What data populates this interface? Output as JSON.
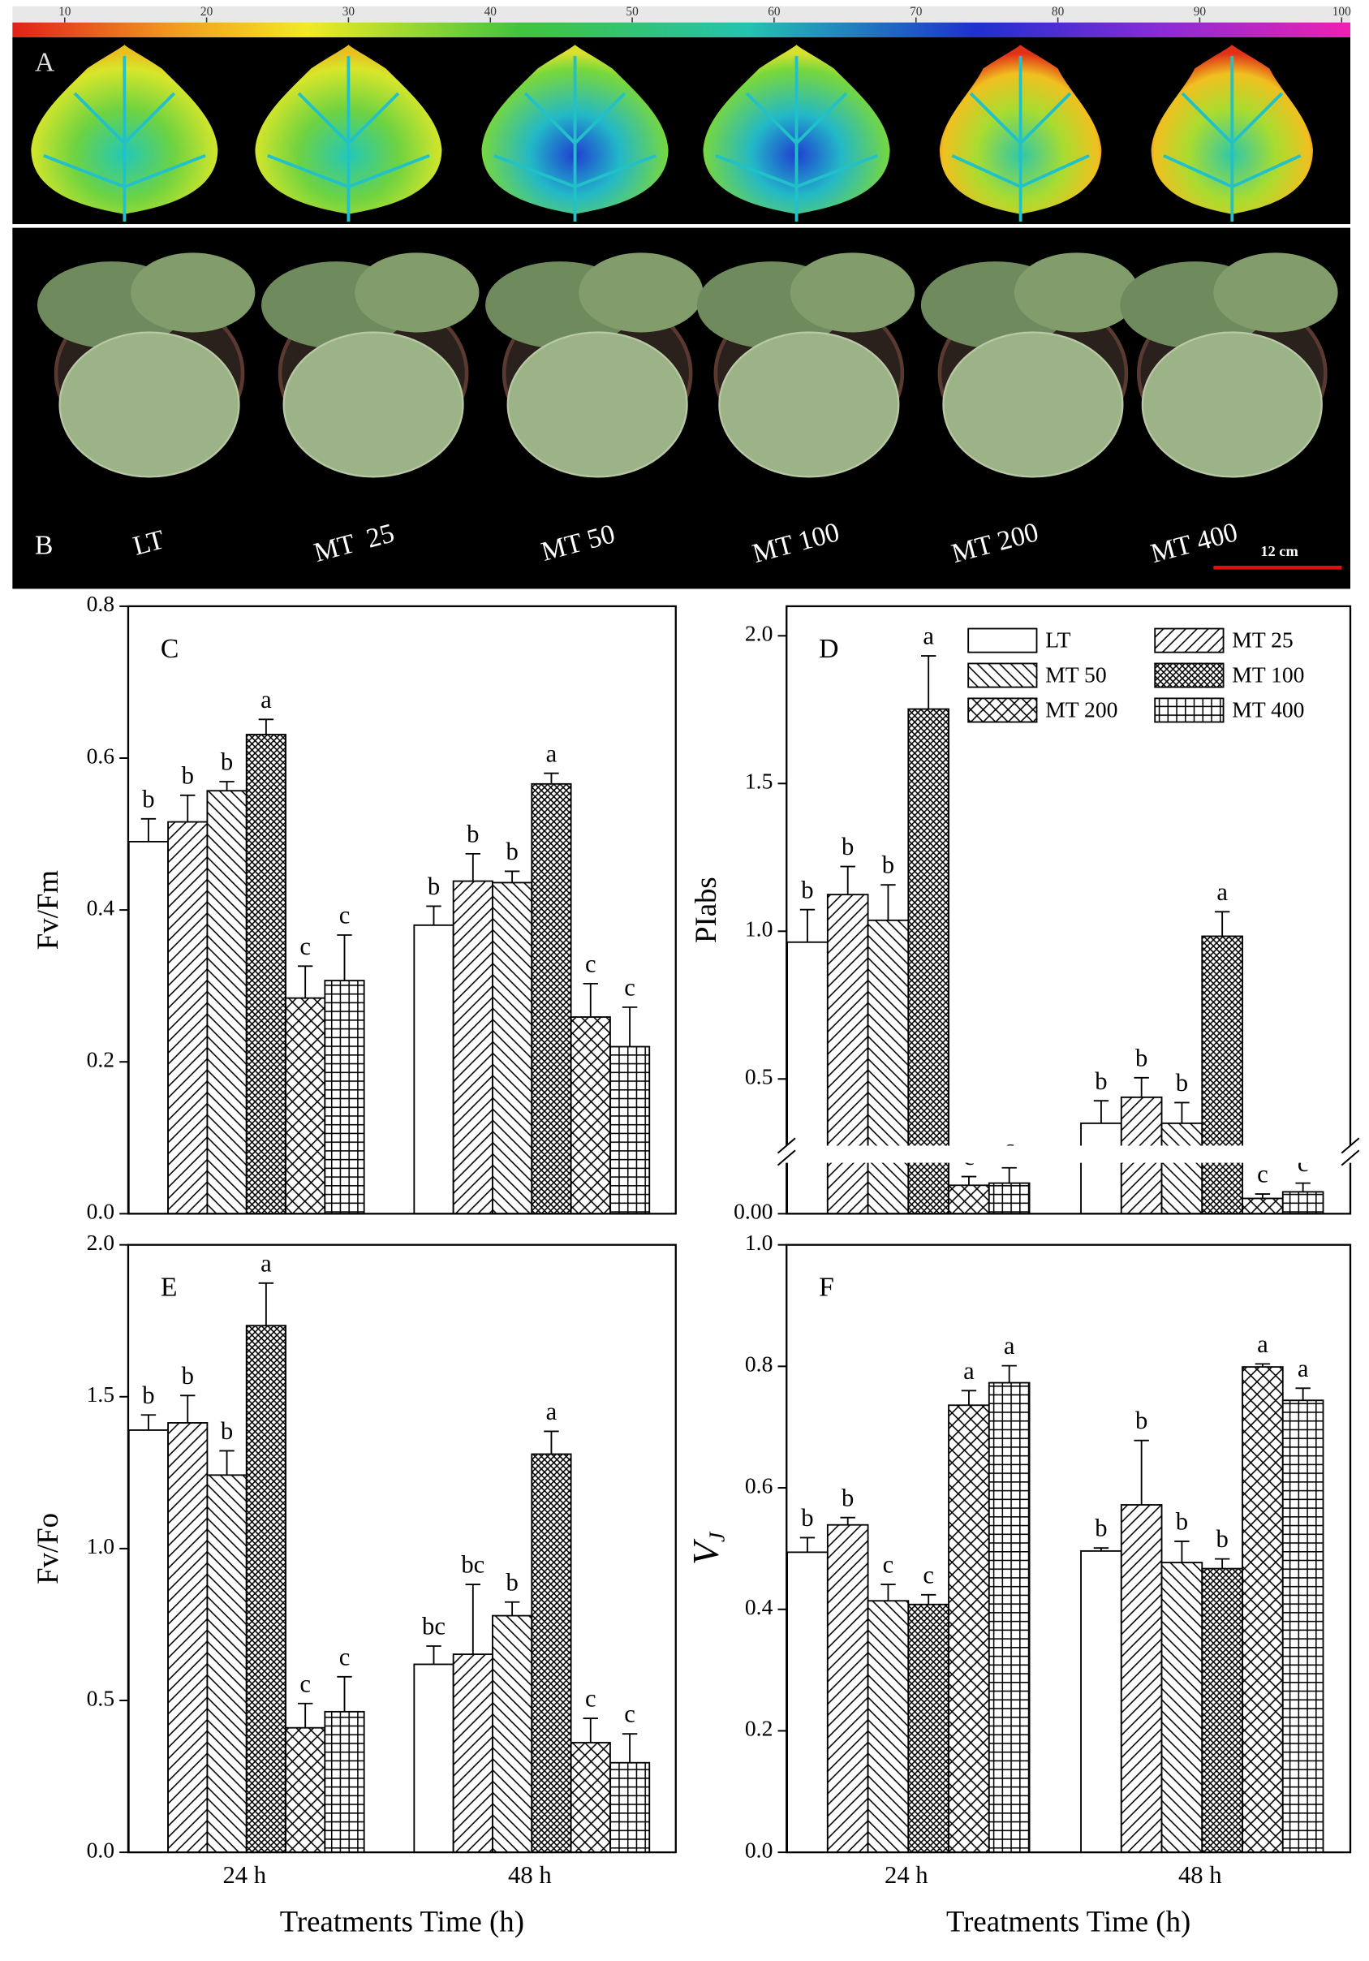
{
  "panels": {
    "A": {
      "label": "A",
      "colorbar_ticks": [
        10,
        20,
        30,
        40,
        50,
        60,
        70,
        80,
        90,
        100
      ]
    },
    "B": {
      "label": "B",
      "plant_labels": [
        "LT",
        "MT  25",
        "MT 50",
        "MT 100",
        "MT 200",
        "MT 400"
      ],
      "scale_bar": "12 cm"
    }
  },
  "chart_data": [
    {
      "type": "bar",
      "panel": "C",
      "y_label": "Fv/Fm",
      "categories": [
        null,
        null
      ],
      "ylim": [
        0,
        0.8
      ],
      "yticks": [
        {
          "value": 0,
          "label": "0.0"
        },
        0.2,
        0.4,
        0.6,
        0.8
      ],
      "series": [
        {
          "color": "#ffffff",
          "pattern": "none",
          "values": [
            0.49,
            0.38
          ],
          "errors": [
            0.03,
            0.025
          ],
          "letters": [
            "b",
            "b"
          ]
        },
        {
          "color": "#ffffff",
          "pattern": "diagonal-up",
          "values": [
            0.516,
            0.438
          ],
          "errors": [
            0.035,
            0.036
          ],
          "letters": [
            "b",
            "b"
          ]
        },
        {
          "color": "#ffffff",
          "pattern": "diagonal-down",
          "values": [
            0.557,
            0.436
          ],
          "errors": [
            0.012,
            0.015
          ],
          "letters": [
            "b",
            "b"
          ]
        },
        {
          "color": "#ffffff",
          "pattern": "crosshatch-dense",
          "values": [
            0.631,
            0.566
          ],
          "errors": [
            0.02,
            0.014
          ],
          "letters": [
            "a",
            "a"
          ]
        },
        {
          "color": "#ffffff",
          "pattern": "crosshatch",
          "values": [
            0.284,
            0.259
          ],
          "errors": [
            0.042,
            0.044
          ],
          "letters": [
            "c",
            "c"
          ]
        },
        {
          "color": "#ffffff",
          "pattern": "grid",
          "values": [
            0.307,
            0.22
          ],
          "errors": [
            0.06,
            0.052
          ],
          "letters": [
            "c",
            "c"
          ]
        }
      ]
    },
    {
      "type": "bar",
      "panel": "D",
      "y_label": "PIabs",
      "categories": [
        null,
        null
      ],
      "ylim": [
        0,
        2.1
      ],
      "ybreak": [
        0.25,
        0.27
      ],
      "yticks": [
        {
          "value": 0,
          "label": "0.00"
        },
        0.5,
        {
          "value": 1,
          "label": "1.0"
        },
        1.5,
        {
          "value": 2,
          "label": "2.0"
        }
      ],
      "legend": "upper-right",
      "series": [
        {
          "name": "LT",
          "color": "#ffffff",
          "pattern": "none",
          "values": [
            0.963,
            0.35
          ],
          "errors": [
            0.11,
            0.076
          ],
          "letters": [
            "b",
            "b"
          ]
        },
        {
          "name": "MT 25",
          "color": "#ffffff",
          "pattern": "diagonal-up",
          "values": [
            1.124,
            0.438
          ],
          "errors": [
            0.095,
            0.066
          ],
          "letters": [
            "b",
            "b"
          ]
        },
        {
          "name": "MT 50",
          "color": "#ffffff",
          "pattern": "diagonal-down",
          "values": [
            1.037,
            0.35
          ],
          "errors": [
            0.12,
            0.07
          ],
          "letters": [
            "b",
            "b"
          ]
        },
        {
          "name": "MT 100",
          "color": "#ffffff",
          "pattern": "crosshatch-dense",
          "values": [
            1.752,
            0.983
          ],
          "errors": [
            0.18,
            0.083
          ],
          "letters": [
            "a",
            "a"
          ]
        },
        {
          "name": "MT 200",
          "color": "#ffffff",
          "pattern": "crosshatch",
          "values": [
            0.13,
            0.07
          ],
          "errors": [
            0.04,
            0.02
          ],
          "letters": [
            "c",
            "c"
          ]
        },
        {
          "name": "MT 400",
          "color": "#ffffff",
          "pattern": "grid",
          "values": [
            0.14,
            0.1
          ],
          "errors": [
            0.07,
            0.04
          ],
          "letters": [
            "c",
            "c"
          ]
        }
      ]
    },
    {
      "type": "bar",
      "panel": "E",
      "y_label": "Fv/Fo",
      "x_label": "Treatments Time (h)",
      "categories": [
        "24 h",
        "48 h"
      ],
      "ylim": [
        0,
        2
      ],
      "yticks": [
        {
          "value": 0,
          "label": "0.0"
        },
        0.5,
        {
          "value": 1,
          "label": "1.0"
        },
        1.5,
        {
          "value": 2,
          "label": "2.0"
        }
      ],
      "series": [
        {
          "color": "#ffffff",
          "pattern": "none",
          "values": [
            1.39,
            0.619
          ],
          "errors": [
            0.05,
            0.06
          ],
          "letters": [
            "b",
            "bc"
          ]
        },
        {
          "color": "#ffffff",
          "pattern": "diagonal-up",
          "values": [
            1.414,
            0.652
          ],
          "errors": [
            0.09,
            0.23
          ],
          "letters": [
            "b",
            "bc"
          ]
        },
        {
          "color": "#ffffff",
          "pattern": "diagonal-down",
          "values": [
            1.242,
            0.779
          ],
          "errors": [
            0.08,
            0.045
          ],
          "letters": [
            "b",
            "b"
          ]
        },
        {
          "color": "#ffffff",
          "pattern": "crosshatch-dense",
          "values": [
            1.734,
            1.311
          ],
          "errors": [
            0.14,
            0.075
          ],
          "letters": [
            "a",
            "a"
          ]
        },
        {
          "color": "#ffffff",
          "pattern": "crosshatch",
          "values": [
            0.41,
            0.361
          ],
          "errors": [
            0.08,
            0.08
          ],
          "letters": [
            "c",
            "c"
          ]
        },
        {
          "color": "#ffffff",
          "pattern": "grid",
          "values": [
            0.463,
            0.295
          ],
          "errors": [
            0.115,
            0.095
          ],
          "letters": [
            "c",
            "c"
          ]
        }
      ]
    },
    {
      "type": "bar",
      "panel": "F",
      "y_label": "V",
      "y_label_sub": "J",
      "x_label": "Treatments Time (h)",
      "categories": [
        "24 h",
        "48 h"
      ],
      "ylim": [
        0,
        1
      ],
      "yticks": [
        {
          "value": 0,
          "label": "0.0"
        },
        0.2,
        0.4,
        0.6,
        0.8,
        {
          "value": 1,
          "label": "1.0"
        }
      ],
      "series": [
        {
          "color": "#ffffff",
          "pattern": "none",
          "values": [
            0.494,
            0.496
          ],
          "errors": [
            0.024,
            0.005
          ],
          "letters": [
            "b",
            "b"
          ]
        },
        {
          "color": "#ffffff",
          "pattern": "diagonal-up",
          "values": [
            0.539,
            0.572
          ],
          "errors": [
            0.012,
            0.106
          ],
          "letters": [
            "b",
            "b"
          ]
        },
        {
          "color": "#ffffff",
          "pattern": "diagonal-down",
          "values": [
            0.414,
            0.477
          ],
          "errors": [
            0.027,
            0.035
          ],
          "letters": [
            "c",
            "b"
          ]
        },
        {
          "color": "#ffffff",
          "pattern": "crosshatch-dense",
          "values": [
            0.408,
            0.467
          ],
          "errors": [
            0.016,
            0.016
          ],
          "letters": [
            "c",
            "b"
          ]
        },
        {
          "color": "#ffffff",
          "pattern": "crosshatch",
          "values": [
            0.736,
            0.799
          ],
          "errors": [
            0.024,
            0.005
          ],
          "letters": [
            "a",
            "a"
          ]
        },
        {
          "color": "#ffffff",
          "pattern": "grid",
          "values": [
            0.773,
            0.744
          ],
          "errors": [
            0.028,
            0.02
          ],
          "letters": [
            "a",
            "a"
          ]
        }
      ]
    }
  ]
}
